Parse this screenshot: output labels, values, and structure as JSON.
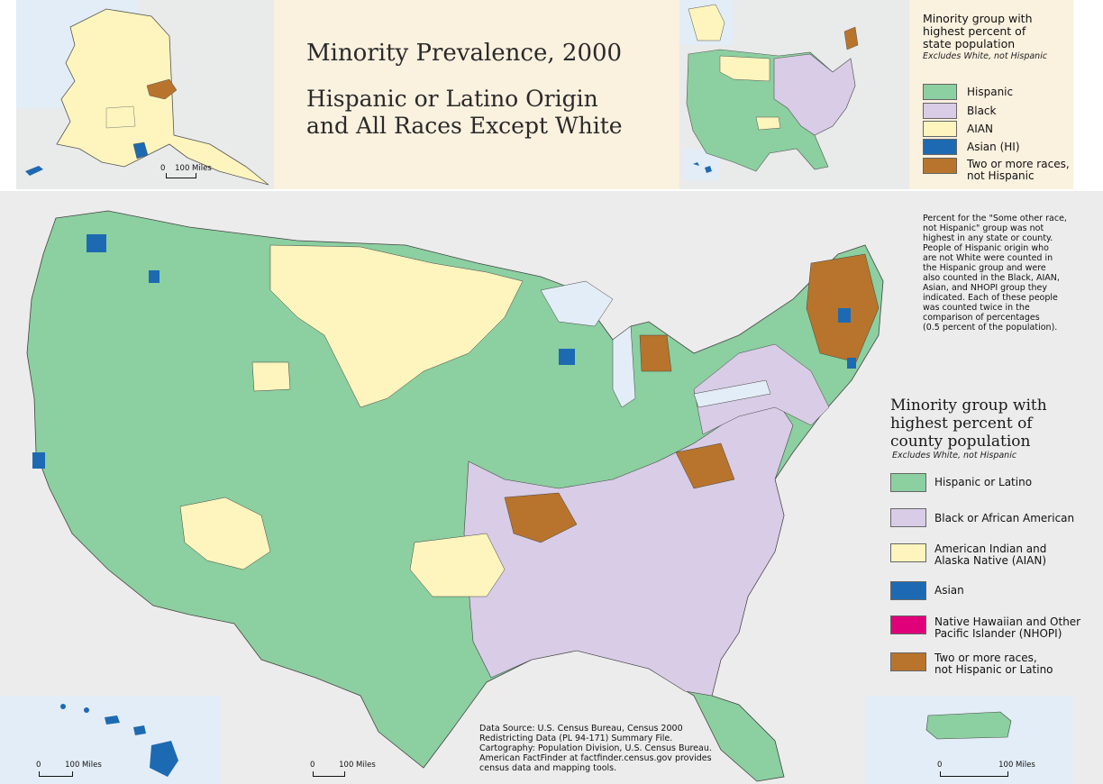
{
  "title": "Minority Prevalence, 2000",
  "subtitle_line1": "Hispanic or Latino Origin",
  "subtitle_line2": "and All Races Except White",
  "state_legend": {
    "title_line1": "Minority group with",
    "title_line2": "highest percent of",
    "title_line3": "state population",
    "subtitle": "Excludes White, not Hispanic",
    "items": [
      {
        "label": "Hispanic",
        "color": "#8ccfa0"
      },
      {
        "label": "Black",
        "color": "#d8cce6"
      },
      {
        "label": "AIAN",
        "color": "#fdf5bd"
      },
      {
        "label": "Asian (HI)",
        "color": "#1d6ab2"
      },
      {
        "label_line1": "Two or more races,",
        "label_line2": "not Hispanic",
        "color": "#b8742c"
      }
    ]
  },
  "note": [
    "Percent for the \"Some other race,",
    "not Hispanic\" group was not",
    "highest in any state or county.",
    "People of Hispanic origin who",
    "are not White were counted in",
    "the Hispanic group and were",
    "also counted in the Black, AIAN,",
    "Asian, and NHOPI group they",
    "indicated. Each of these people",
    "was counted twice in the",
    "comparison of percentages",
    "(0.5 percent of the population)."
  ],
  "county_legend": {
    "title_line1": "Minority group with",
    "title_line2": "highest percent of",
    "title_line3": "county population",
    "subtitle": "Excludes White, not Hispanic",
    "items": [
      {
        "label_line1": "Hispanic or Latino",
        "label_line2": "",
        "color": "#8ccfa0"
      },
      {
        "label_line1": "Black or African American",
        "label_line2": "",
        "color": "#d8cce6"
      },
      {
        "label_line1": "American Indian and",
        "label_line2": "Alaska Native (AIAN)",
        "color": "#fdf5bd"
      },
      {
        "label_line1": "Asian",
        "label_line2": "",
        "color": "#1d6ab2"
      },
      {
        "label_line1": "Native Hawaiian and Other",
        "label_line2": "Pacific Islander (NHOPI)",
        "color": "#e0007a"
      },
      {
        "label_line1": "Two or more races,",
        "label_line2": "not Hispanic or Latino",
        "color": "#b8742c"
      }
    ]
  },
  "source_lines": [
    "Data Source: U.S. Census Bureau, Census 2000",
    "Redistricting Data (PL 94-171) Summary File.",
    "Cartography: Population Division, U.S. Census Bureau.",
    "American FactFinder at factfinder.census.gov provides",
    "census data and mapping tools."
  ],
  "scale_bars": {
    "alaska": {
      "zero": "0",
      "label": "100 Miles"
    },
    "hawaii": {
      "zero": "0",
      "label": "100 Miles"
    },
    "conus": {
      "zero": "0",
      "label": "100 Miles"
    },
    "puerto_rico": {
      "zero": "0",
      "label": "100 Miles"
    }
  },
  "colors": {
    "hispanic": "#8ccfa0",
    "black": "#d8cce6",
    "aian": "#fdf5bd",
    "asian": "#1d6ab2",
    "nhopi": "#e0007a",
    "two_or_more": "#b8742c",
    "water": "#e3edf7",
    "background_tan": "#fbf1df"
  }
}
